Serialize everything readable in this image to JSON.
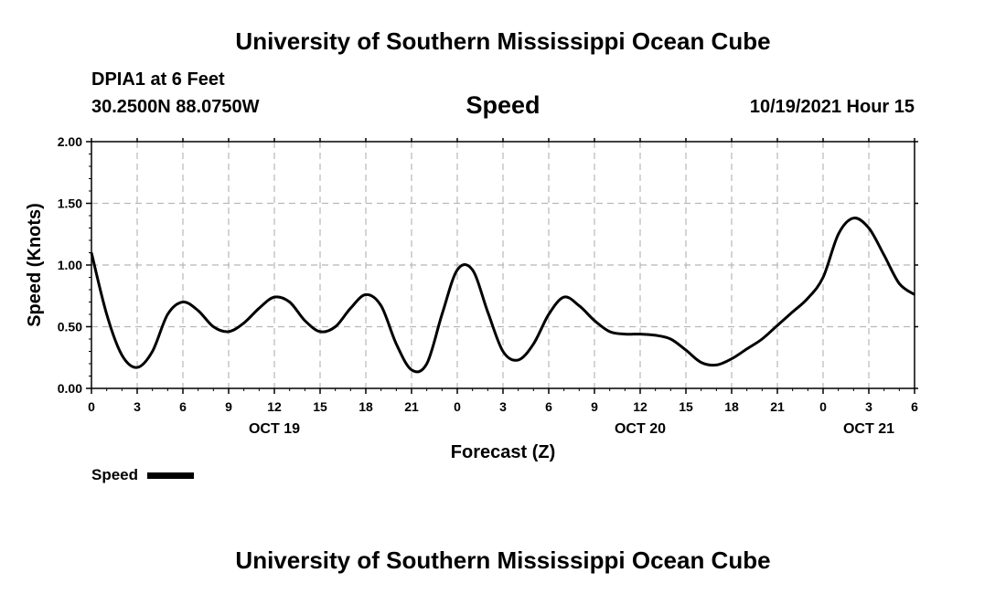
{
  "header": {
    "title": "University of Southern Mississippi Ocean Cube",
    "station": "DPIA1 at 6 Feet",
    "coords": "30.2500N  88.0750W",
    "variable": "Speed",
    "datetime": "10/19/2021 Hour 15"
  },
  "footer": {
    "title": "University of Southern Mississippi Ocean Cube"
  },
  "legend": {
    "label": "Speed"
  },
  "chart_data": {
    "type": "line",
    "title": "Speed",
    "xlabel": "Forecast (Z)",
    "ylabel": "Speed (Knots)",
    "ylim": [
      0,
      2
    ],
    "yticks": [
      "0.00",
      "0.50",
      "1.00",
      "1.50",
      "2.00"
    ],
    "xlim": [
      0,
      54
    ],
    "xticks": [
      "0",
      "3",
      "6",
      "9",
      "12",
      "15",
      "18",
      "21",
      "0",
      "3",
      "6",
      "9",
      "12",
      "15",
      "18",
      "21",
      "0",
      "3",
      "6"
    ],
    "day_labels": [
      {
        "text": "OCT 19",
        "hour": 12
      },
      {
        "text": "OCT 20",
        "hour": 36
      },
      {
        "text": "OCT 21",
        "hour": 51
      }
    ],
    "grid": true,
    "series": [
      {
        "name": "Speed",
        "x": [
          0,
          1,
          2,
          3,
          4,
          5,
          6,
          7,
          8,
          9,
          10,
          11,
          12,
          13,
          14,
          15,
          16,
          17,
          18,
          19,
          20,
          21,
          22,
          23,
          24,
          25,
          26,
          27,
          28,
          29,
          30,
          31,
          32,
          33,
          34,
          35,
          36,
          37,
          38,
          39,
          40,
          41,
          42,
          43,
          44,
          45,
          46,
          47,
          48,
          49,
          50,
          51,
          52,
          53,
          54
        ],
        "values": [
          1.1,
          0.6,
          0.27,
          0.17,
          0.3,
          0.6,
          0.7,
          0.63,
          0.5,
          0.46,
          0.53,
          0.65,
          0.74,
          0.7,
          0.55,
          0.46,
          0.5,
          0.65,
          0.76,
          0.67,
          0.36,
          0.15,
          0.2,
          0.6,
          0.96,
          0.96,
          0.62,
          0.3,
          0.23,
          0.36,
          0.6,
          0.74,
          0.67,
          0.55,
          0.46,
          0.44,
          0.44,
          0.43,
          0.4,
          0.31,
          0.21,
          0.19,
          0.24,
          0.32,
          0.4,
          0.51,
          0.62,
          0.73,
          0.9,
          1.25,
          1.38,
          1.3,
          1.08,
          0.85,
          0.76
        ]
      }
    ]
  }
}
